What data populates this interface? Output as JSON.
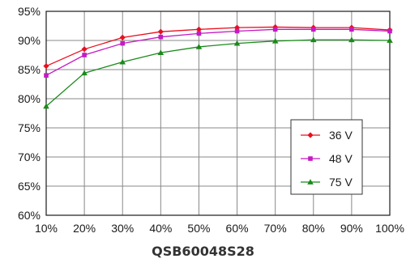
{
  "chart_data": {
    "type": "line",
    "title": "QSB60048S28",
    "xlabel": "",
    "ylabel": "",
    "x": [
      "10%",
      "20%",
      "30%",
      "40%",
      "50%",
      "60%",
      "70%",
      "80%",
      "90%",
      "100%"
    ],
    "y_ticks": [
      "60%",
      "65%",
      "70%",
      "75%",
      "80%",
      "85%",
      "90%",
      "95%"
    ],
    "ylim": [
      60,
      95
    ],
    "grid": true,
    "legend_position": "lower-right",
    "series": [
      {
        "name": "36 V",
        "color": "#e8101e",
        "marker": "diamond",
        "values": [
          85.6,
          88.5,
          90.5,
          91.5,
          91.9,
          92.2,
          92.3,
          92.2,
          92.2,
          91.8
        ]
      },
      {
        "name": "48 V",
        "color": "#c41ac4",
        "marker": "square",
        "values": [
          84.0,
          87.5,
          89.5,
          90.6,
          91.2,
          91.6,
          91.9,
          91.9,
          91.9,
          91.6
        ]
      },
      {
        "name": "75 V",
        "color": "#1a8a1a",
        "marker": "triangle",
        "values": [
          78.7,
          84.4,
          86.3,
          87.9,
          88.9,
          89.5,
          89.9,
          90.1,
          90.1,
          90.0
        ]
      }
    ]
  }
}
